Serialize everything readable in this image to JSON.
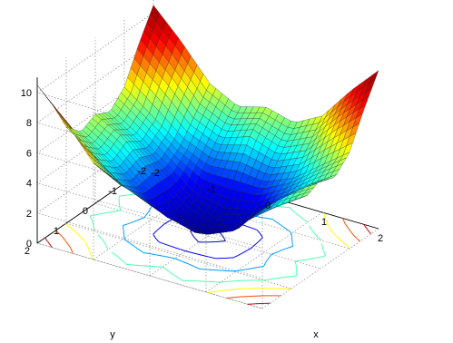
{
  "chart_data": {
    "type": "surface",
    "xlabel": "x",
    "ylabel": "y",
    "xlim": [
      -2,
      2
    ],
    "ylim": [
      -2,
      2
    ],
    "zlim": [
      0,
      11
    ],
    "xticks": [
      -2,
      -1,
      0,
      1,
      2
    ],
    "yticks": [
      -2,
      -1,
      0,
      1,
      2
    ],
    "zticks": [
      0,
      2,
      4,
      6,
      8,
      10
    ],
    "xtick_labels": [
      "-2",
      "-1",
      "0",
      "1",
      "2"
    ],
    "ytick_labels": [
      "-2",
      "-1",
      "0",
      "1",
      "2"
    ],
    "ztick_labels": [
      "0",
      "2",
      "4",
      "6",
      "8",
      "10"
    ],
    "contour_projection": true,
    "grid": true,
    "colormap": "jet",
    "colormap_colors": [
      "#00008f",
      "#0000ff",
      "#00ffff",
      "#ffff00",
      "#ff0000",
      "#800000"
    ],
    "surface_grid": {
      "x": [
        -2,
        -1.5,
        -1,
        -0.5,
        0,
        0.5,
        1,
        1.5,
        2
      ],
      "y": [
        -2,
        -1.5,
        -1,
        -0.5,
        0,
        0.5,
        1,
        1.5,
        2
      ],
      "z": [
        [
          10.5,
          8.6,
          6.4,
          5.4,
          5.9,
          5.4,
          6.4,
          8.6,
          10.5
        ],
        [
          8.6,
          6.9,
          5.0,
          4.2,
          4.9,
          4.2,
          5.0,
          6.9,
          8.6
        ],
        [
          6.4,
          5.0,
          3.6,
          2.8,
          3.0,
          2.8,
          3.6,
          5.0,
          6.4
        ],
        [
          5.4,
          4.2,
          2.8,
          1.4,
          0.9,
          1.4,
          2.8,
          4.2,
          5.4
        ],
        [
          5.9,
          4.9,
          3.0,
          0.9,
          0.1,
          0.9,
          3.0,
          4.9,
          5.9
        ],
        [
          5.4,
          4.2,
          2.8,
          1.4,
          0.9,
          1.4,
          2.8,
          4.2,
          5.4
        ],
        [
          6.4,
          5.0,
          3.6,
          2.8,
          3.0,
          2.8,
          3.6,
          5.0,
          6.4
        ],
        [
          8.6,
          6.9,
          5.0,
          4.2,
          4.9,
          4.2,
          5.0,
          6.9,
          8.6
        ],
        [
          10.5,
          8.6,
          6.4,
          5.4,
          5.9,
          5.4,
          6.4,
          8.6,
          10.5
        ]
      ]
    }
  }
}
